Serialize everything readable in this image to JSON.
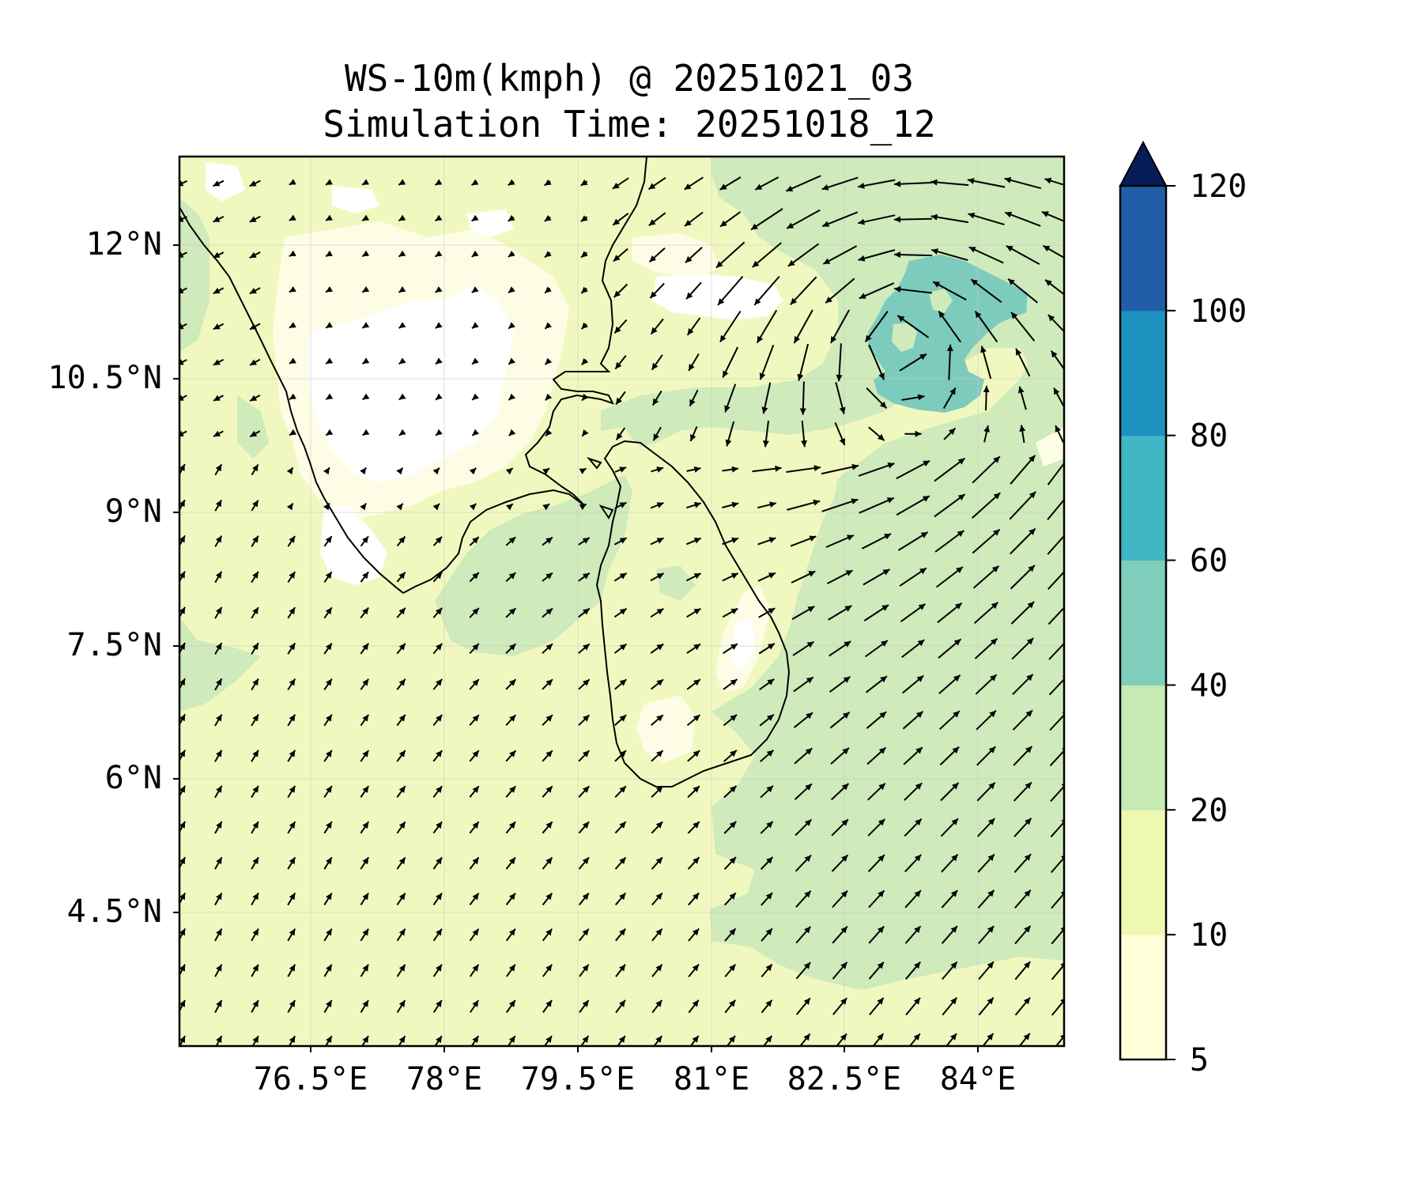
{
  "title": {
    "line1": "WS-10m(kmph) @ 20251021_03",
    "line2": "Simulation Time: 20251018_12"
  },
  "map": {
    "lon_ticks": [
      "76.5°E",
      "78°E",
      "79.5°E",
      "81°E",
      "82.5°E",
      "84°E"
    ],
    "lat_ticks": [
      "12°N",
      "10.5°N",
      "9°N",
      "7.5°N",
      "6°N",
      "4.5°N"
    ],
    "lon_range": [
      75,
      85
    ],
    "lat_range": [
      3,
      13
    ]
  },
  "colorbar": {
    "levels": [
      5,
      10,
      20,
      40,
      60,
      80,
      100,
      120
    ],
    "labels": [
      "5",
      "10",
      "20",
      "40",
      "60",
      "80",
      "100",
      "120"
    ],
    "colors": [
      "#ffffd9",
      "#edf8b1",
      "#c7e9b4",
      "#7fcdbb",
      "#41b6c4",
      "#1d91c0",
      "#225ea8",
      "#253494"
    ],
    "extend_color": "#081d58",
    "extend": "max"
  },
  "cyclone": {
    "center_lon": 83.4,
    "center_lat": 10.9,
    "max_speed_band": "40-60"
  }
}
